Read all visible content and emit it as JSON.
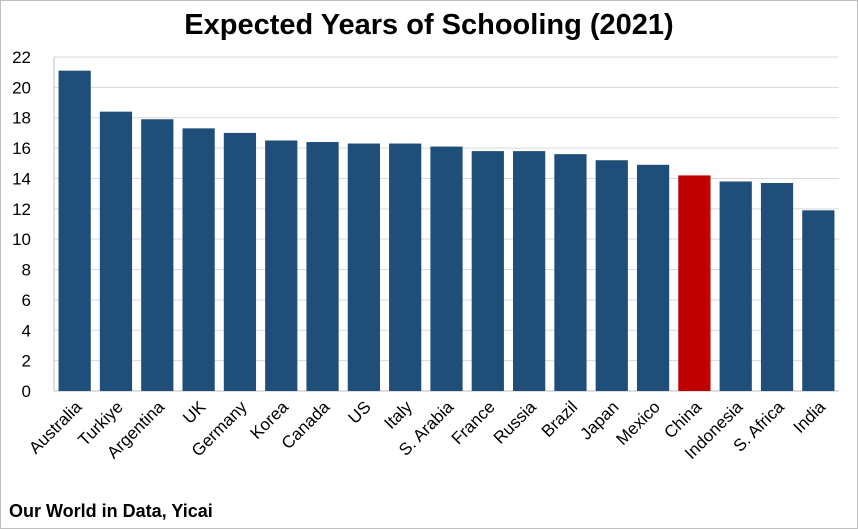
{
  "chart_data": {
    "type": "bar",
    "title": "Expected Years of Schooling (2021)",
    "source": "Our World in Data, Yicai",
    "categories": [
      "Australia",
      "Turkiye",
      "Argentina",
      "UK",
      "Germany",
      "Korea",
      "Canada",
      "US",
      "Italy",
      "S. Arabia",
      "France",
      "Russia",
      "Brazil",
      "Japan",
      "Mexico",
      "China",
      "Indonesia",
      "S. Africa",
      "India"
    ],
    "values": [
      21.1,
      18.4,
      17.9,
      17.3,
      17.0,
      16.5,
      16.4,
      16.3,
      16.3,
      16.1,
      15.8,
      15.8,
      15.6,
      15.2,
      14.9,
      14.2,
      13.8,
      13.7,
      11.9
    ],
    "ylim": [
      0,
      22
    ],
    "yticks": [
      0,
      2,
      4,
      6,
      8,
      10,
      12,
      14,
      16,
      18,
      20,
      22
    ],
    "grid": true,
    "legend": "none",
    "colors": {
      "default_bar": "#1f4e79",
      "highlight_bar": "#c00000",
      "gridline": "#d9d9d9",
      "axis": "#bfbfbf"
    },
    "highlight": "China"
  }
}
